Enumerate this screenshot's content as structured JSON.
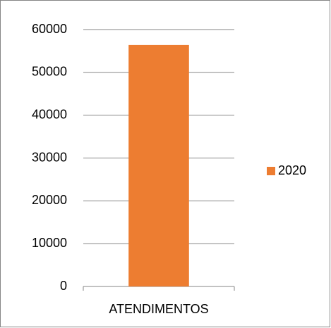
{
  "chart_data": {
    "type": "bar",
    "categories": [
      "ATENDIMENTOS"
    ],
    "series": [
      {
        "name": "2020",
        "color": "#ed7d31",
        "values": [
          56400
        ]
      }
    ],
    "ylim": [
      0,
      60000
    ],
    "yticks": [
      0,
      10000,
      20000,
      30000,
      40000,
      50000,
      60000
    ],
    "grid": true,
    "legend": "right"
  }
}
